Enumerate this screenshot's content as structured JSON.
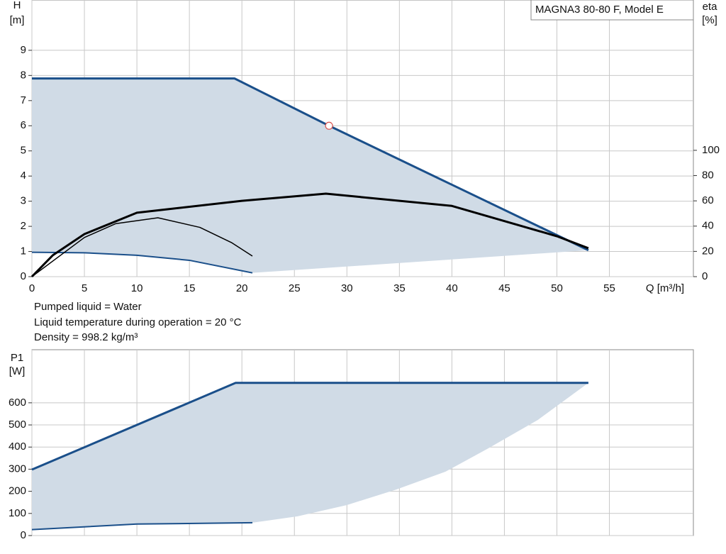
{
  "chart_data": [
    {
      "type": "line",
      "title": "MAGNA3 80-80 F, Model E",
      "y_label": "H",
      "y_unit": "[m]",
      "y2_label": "eta",
      "y2_unit": "[%]",
      "x_label": "Q [m³/h]",
      "xlim": [
        0,
        63
      ],
      "xticks": [
        0,
        5,
        10,
        15,
        20,
        25,
        30,
        35,
        40,
        45,
        50,
        55
      ],
      "ylim": [
        0,
        11
      ],
      "yticks": [
        0,
        1,
        2,
        3,
        4,
        5,
        6,
        7,
        8,
        9
      ],
      "y2lim": [
        0,
        219
      ],
      "y2ticks": [
        0,
        20,
        40,
        60,
        80,
        100
      ],
      "grid": true,
      "series": [
        {
          "kind": "area",
          "color": "#d0dbe6",
          "x": [
            0,
            19.3,
            28.3,
            53,
            21,
            15,
            10,
            5,
            0
          ],
          "values": [
            7.88,
            7.88,
            6.0,
            1.05,
            0.15,
            0.65,
            0.85,
            0.95,
            0.97
          ]
        },
        {
          "kind": "line",
          "color": "#1a4f8a",
          "line_width": 3,
          "x": [
            0,
            19.3,
            28.3,
            53
          ],
          "values": [
            7.88,
            7.88,
            6.0,
            1.05
          ]
        },
        {
          "kind": "line",
          "color": "#1a4f8a",
          "line_width": 2,
          "x": [
            0,
            5,
            10,
            15,
            21
          ],
          "values": [
            0.97,
            0.95,
            0.85,
            0.65,
            0.15
          ]
        },
        {
          "kind": "line",
          "color": "#000000",
          "line_width": 3,
          "axis": "y2",
          "x": [
            0,
            2,
            5,
            10,
            20,
            28,
            40,
            50,
            53
          ],
          "values": [
            0,
            17,
            33.7,
            50.6,
            60,
            65.7,
            56,
            32,
            22.5
          ]
        },
        {
          "kind": "line",
          "color": "#000000",
          "line_width": 1.5,
          "axis": "y2",
          "x": [
            0,
            5,
            8,
            12,
            16,
            19,
            21
          ],
          "values": [
            0,
            31,
            42,
            46.6,
            39,
            27,
            16.3
          ]
        }
      ],
      "markers": [
        {
          "x": 28.3,
          "y": 6.0,
          "color": "#d9534f"
        }
      ],
      "notes": [
        "Pumped liquid = Water",
        "Liquid temperature during operation = 20 °C",
        "Density = 998.2 kg/m³"
      ]
    },
    {
      "type": "line",
      "y_label": "P1",
      "y_unit": "[W]",
      "xlim": [
        0,
        63
      ],
      "ylim": [
        0,
        840
      ],
      "yticks": [
        0,
        100,
        200,
        300,
        400,
        500,
        600
      ],
      "grid": true,
      "series": [
        {
          "kind": "area",
          "color": "#d0dbe6",
          "x": [
            0,
            19.4,
            53,
            48.2,
            43.5,
            39.4,
            34.7,
            30,
            25.3,
            21,
            10,
            0
          ],
          "values": [
            298,
            690,
            690,
            523,
            395,
            289,
            208,
            138,
            87,
            58,
            52,
            27
          ]
        },
        {
          "kind": "line",
          "color": "#1a4f8a",
          "line_width": 3,
          "x": [
            0,
            19.4,
            53
          ],
          "values": [
            298,
            690,
            690
          ]
        },
        {
          "kind": "line",
          "color": "#1a4f8a",
          "line_width": 2,
          "x": [
            0,
            10,
            21
          ],
          "values": [
            27,
            52,
            58
          ]
        }
      ]
    }
  ]
}
